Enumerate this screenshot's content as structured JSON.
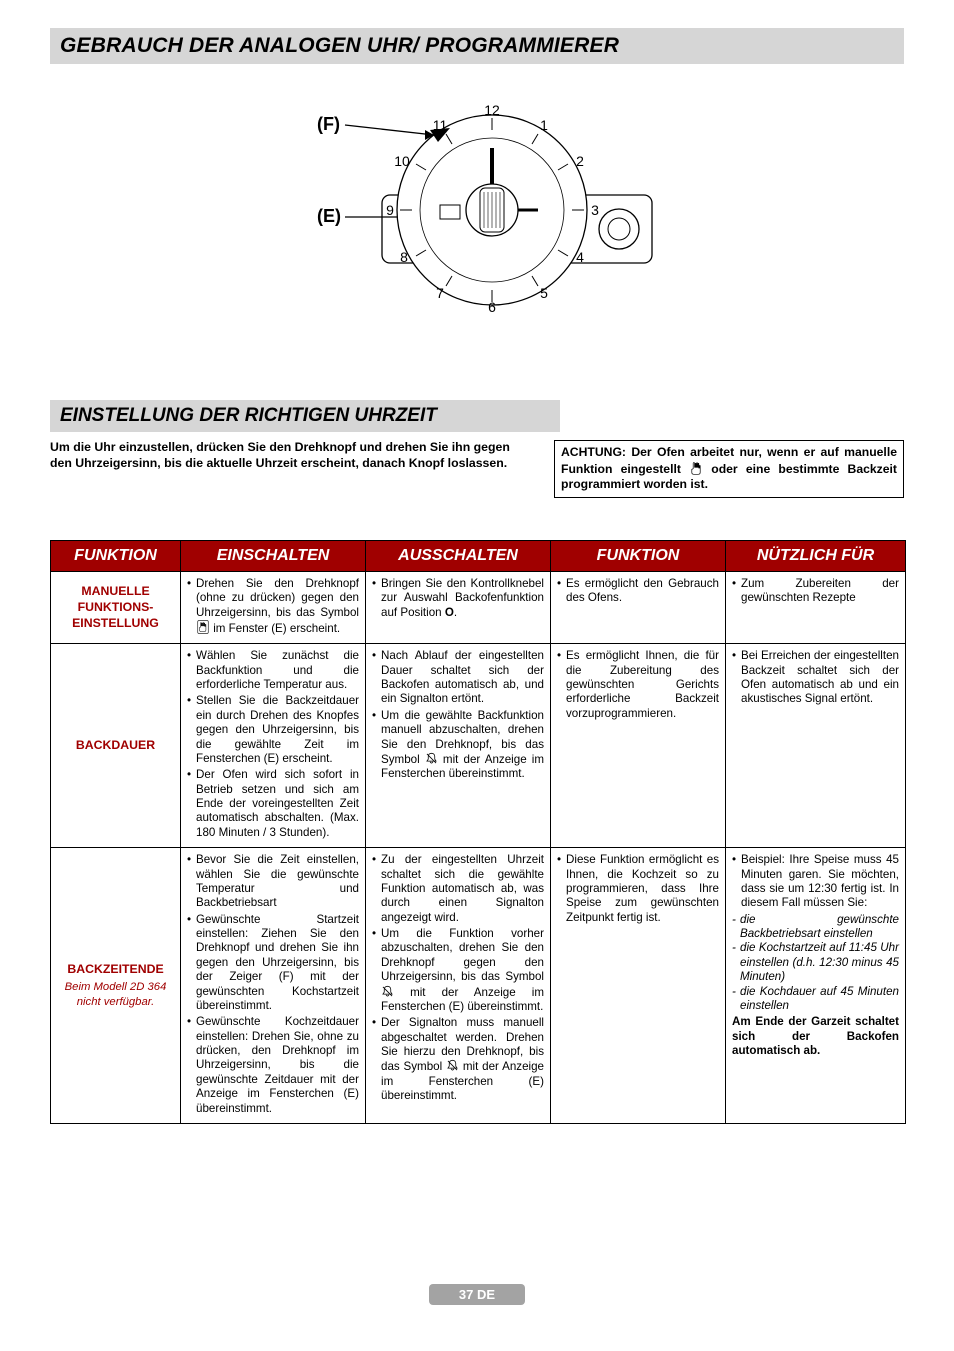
{
  "colors": {
    "title_bg": "#d6d6d6",
    "header_bg": "#a00000",
    "header_fg": "#ffffff",
    "rowhdr_fg": "#a00000",
    "footer_bg": "#a3a3a3",
    "border": "#000000",
    "page_bg": "#ffffff"
  },
  "title": "GEBRAUCH DER ANALOGEN UHR/ PROGRAMMIERER",
  "diagram": {
    "label_F": "(F)",
    "label_E": "(E)",
    "clock_numbers": [
      "12",
      "1",
      "2",
      "3",
      "4",
      "5",
      "6",
      "7",
      "8",
      "9",
      "10",
      "11"
    ]
  },
  "subtitle": "EINSTELLUNG DER RICHTIGEN UHRZEIT",
  "intro_left": "Um die Uhr einzustellen, drücken Sie den Drehknopf und drehen Sie ihn gegen den Uhrzeigersinn, bis die aktuelle Uhrzeit erscheint, danach Knopf loslassen.",
  "intro_right_before": "ACHTUNG: Der Ofen arbeitet nur, wenn er auf manuelle Funktion eingestellt ",
  "intro_right_after": " oder eine bestimmte Backzeit programmiert worden ist.",
  "table": {
    "col_widths": [
      "130px",
      "185px",
      "185px",
      "175px",
      "180px"
    ],
    "headers": [
      "FUNKTION",
      "EINSCHALTEN",
      "AUSSCHALTEN",
      "FUNKTION",
      "NÜTZLICH FÜR"
    ],
    "rows": [
      {
        "label": "MANUELLE FUNKTIONS-EINSTELLUNG",
        "einschalten": {
          "items": [
            {
              "pre": "Drehen Sie den Drehknopf (ohne zu drücken) gegen den Uhrzeigersinn, bis das Symbol ",
              "sym": "hand",
              "post": " im Fenster (E) erscheint."
            }
          ]
        },
        "ausschalten": {
          "items": [
            {
              "pre": "Bringen Sie den Kontrollknebel zur Auswahl Backofenfunktion auf Position ",
              "bold": "O",
              "post": "."
            }
          ]
        },
        "funktion": {
          "items": [
            {
              "text": "Es ermöglicht den Gebrauch des Ofens."
            }
          ]
        },
        "nuetzlich": {
          "items": [
            {
              "text": "Zum Zubereiten der gewünschten Rezepte"
            }
          ]
        }
      },
      {
        "label": "BACKDAUER",
        "einschalten": {
          "items": [
            {
              "text": "Wählen Sie zunächst die Backfunktion und die erforderliche Temperatur aus."
            },
            {
              "text": "Stellen Sie die Backzeitdauer ein durch Drehen des Knopfes gegen den Uhrzeigersinn, bis die gewählte Zeit im Fensterchen (E) erscheint."
            },
            {
              "text": "Der Ofen wird sich sofort in Betrieb setzen und sich am Ende der voreingestellten Zeit automatisch abschalten. (Max. 180 Minuten / 3 Stunden)."
            }
          ]
        },
        "ausschalten": {
          "items": [
            {
              "text": "Nach Ablauf der eingestellten Dauer schaltet sich der Backofen automatisch ab, und ein Signalton ertönt."
            },
            {
              "pre": "Um die gewählte Backfunktion manuell abzuschalten, drehen Sie den Drehknopf, bis das Symbol ",
              "sym": "bell",
              "post": " mit der Anzeige im Fensterchen übereinstimmt."
            }
          ]
        },
        "funktion": {
          "items": [
            {
              "text": "Es ermöglicht Ihnen, die für die Zubereitung des gewünschten Gerichts erforderliche Backzeit vorzuprogrammieren."
            }
          ]
        },
        "nuetzlich": {
          "items": [
            {
              "text": "Bei Erreichen der eingestellten Backzeit schaltet sich der Ofen automatisch ab und ein akustisches Signal ertönt."
            }
          ]
        }
      },
      {
        "label": "BACKZEITENDE",
        "label_sub": "Beim Modell 2D 364 nicht verfügbar.",
        "einschalten": {
          "items": [
            {
              "text": "Bevor Sie die Zeit einstellen, wählen Sie die gewünschte Temperatur und Backbetriebsart"
            },
            {
              "text": "Gewünschte Startzeit einstellen: Ziehen Sie den Drehknopf und drehen Sie ihn gegen den Uhrzeigersinn, bis der Zeiger (F) mit der gewünschten Kochstartzeit übereinstimmt."
            },
            {
              "text": "Gewünschte Kochzeitdauer einstellen: Drehen Sie, ohne zu drücken, den Drehknopf im Uhrzeigersinn, bis die gewünschte Zeitdauer mit der Anzeige im Fensterchen (E) übereinstimmt."
            }
          ]
        },
        "ausschalten": {
          "items": [
            {
              "text": "Zu der eingestellten Uhrzeit schaltet sich die gewählte Funktion automatisch ab, was durch einen Signalton angezeigt wird."
            },
            {
              "pre": "Um die Funktion vorher abzuschalten, drehen Sie den Drehknopf gegen den Uhrzeigersinn, bis das Symbol ",
              "sym": "bell",
              "post": " mit der Anzeige im Fensterchen (E) übereinstimmt."
            },
            {
              "pre": "Der Signalton muss manuell abgeschaltet werden. Drehen Sie hierzu den Drehknopf, bis das Symbol ",
              "sym": "bell",
              "post": " mit der Anzeige im Fensterchen (E) übereinstimmt."
            }
          ]
        },
        "funktion": {
          "items": [
            {
              "text": "Diese Funktion ermöglicht es Ihnen, die Kochzeit so zu programmieren, dass Ihre Speise zum gewünschten Zeitpunkt fertig ist."
            }
          ]
        },
        "nuetzlich": {
          "intro": "Beispiel: Ihre Speise muss 45 Minuten garen. Sie möchten, dass sie um 12:30 fertig ist. In diesem Fall müssen Sie:",
          "dash": [
            "die gewünschte Backbetriebsart einstellen",
            "die Kochstartzeit auf 11:45 Uhr einstellen (d.h. 12:30 minus 45 Minuten)",
            "die Kochdauer auf 45 Minuten einstellen"
          ],
          "tail": "Am Ende der Garzeit schaltet sich der Backofen automatisch ab."
        }
      }
    ]
  },
  "footer": "37 DE"
}
